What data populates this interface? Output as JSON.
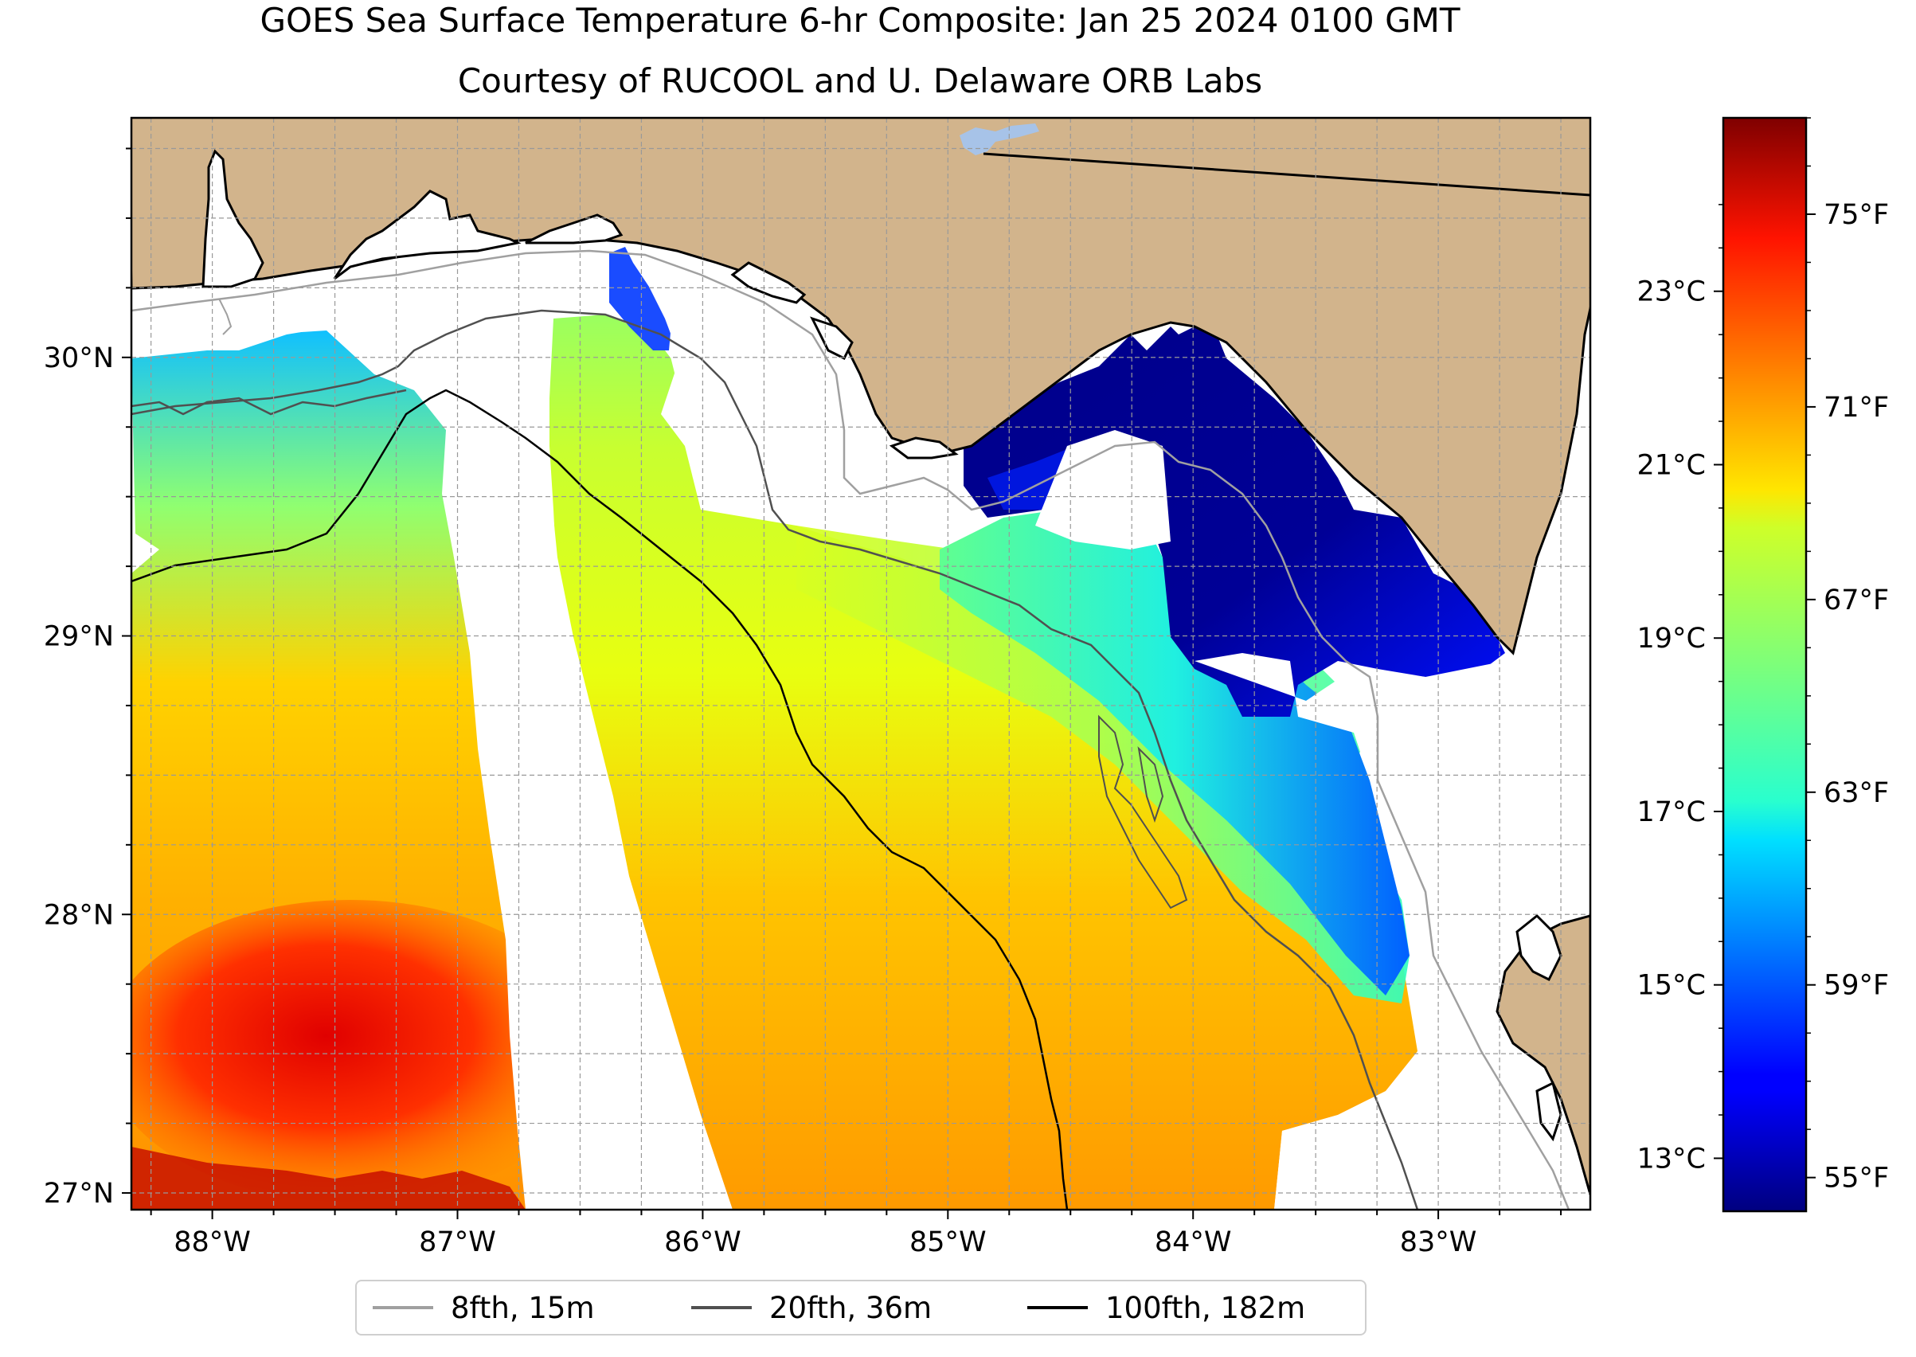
{
  "title": "GOES Sea Surface Temperature 6-hr Composite: Jan 25 2024 0100 GMT",
  "subtitle": "Courtesy of RUCOOL and U. Delaware ORB Labs",
  "map": {
    "lon_range": [
      -88.33,
      -82.38
    ],
    "lat_range": [
      26.94,
      30.86
    ],
    "lon_ticks": [
      {
        "value": -88,
        "label": "88°W"
      },
      {
        "value": -87,
        "label": "87°W"
      },
      {
        "value": -86,
        "label": "86°W"
      },
      {
        "value": -85,
        "label": "85°W"
      },
      {
        "value": -84,
        "label": "84°W"
      },
      {
        "value": -83,
        "label": "83°W"
      }
    ],
    "lat_ticks": [
      {
        "value": 30,
        "label": "30°N"
      },
      {
        "value": 29,
        "label": "29°N"
      },
      {
        "value": 28,
        "label": "28°N"
      },
      {
        "value": 27,
        "label": "27°N"
      }
    ],
    "grid": true,
    "colors": {
      "land": "#d2b48c",
      "ocean_nodata": "#ffffff",
      "lake": "#a7c3e8",
      "coastline": "#000000"
    }
  },
  "colorbar": {
    "colormap": "jet",
    "range_f": [
      54.3,
      77.0
    ],
    "f_ticks": [
      {
        "value": 55,
        "label": "55°F"
      },
      {
        "value": 59,
        "label": "59°F"
      },
      {
        "value": 63,
        "label": "63°F"
      },
      {
        "value": 67,
        "label": "67°F"
      },
      {
        "value": 71,
        "label": "71°F"
      },
      {
        "value": 75,
        "label": "75°F"
      }
    ],
    "c_ticks": [
      {
        "value": 13,
        "label": "13°C"
      },
      {
        "value": 15,
        "label": "15°C"
      },
      {
        "value": 17,
        "label": "17°C"
      },
      {
        "value": 19,
        "label": "19°C"
      },
      {
        "value": 21,
        "label": "21°C"
      },
      {
        "value": 23,
        "label": "23°C"
      }
    ]
  },
  "legend": [
    {
      "label": "8fth, 15m",
      "color": "#a0a0a0"
    },
    {
      "label": "20fth, 36m",
      "color": "#505050"
    },
    {
      "label": "100fth, 182m",
      "color": "#000000"
    }
  ]
}
